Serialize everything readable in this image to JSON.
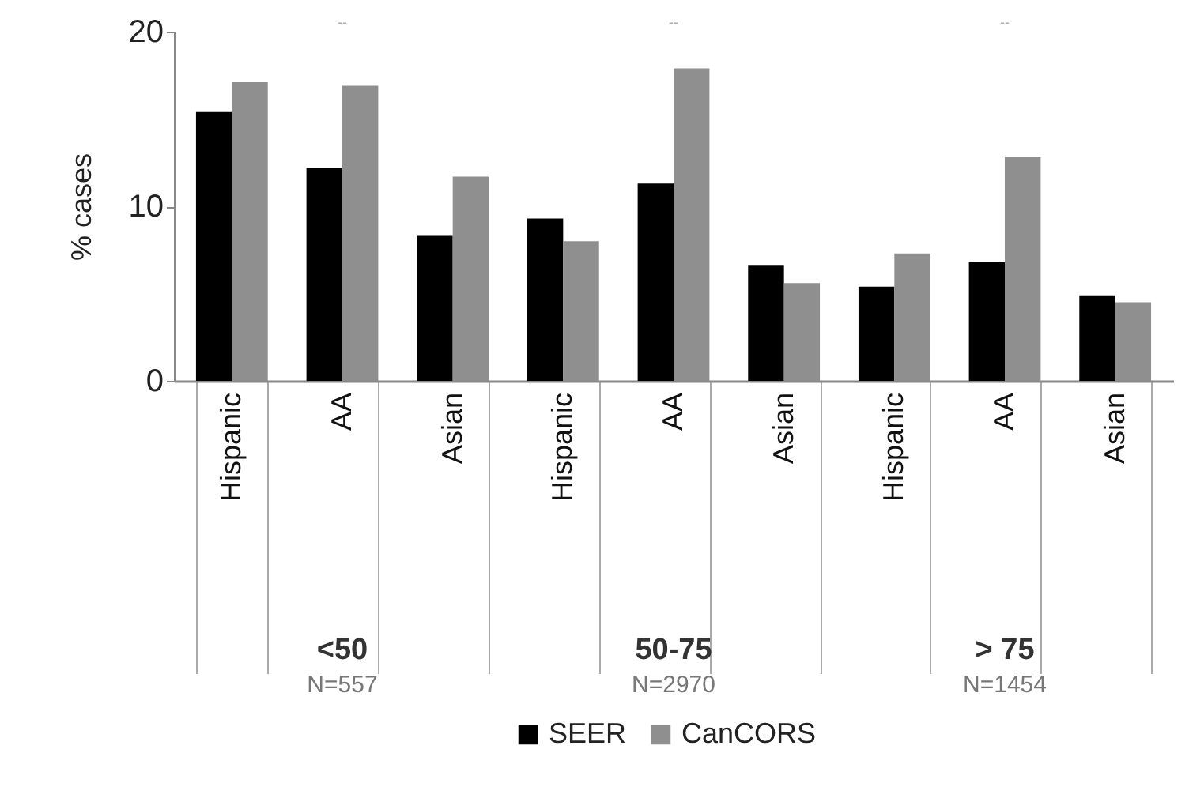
{
  "chart_data": {
    "type": "bar",
    "ylabel": "% cases",
    "categories": [
      "Hispanic",
      "AA",
      "Asian",
      "Hispanic",
      "AA",
      "Asian",
      "Hispanic",
      "AA",
      "Asian"
    ],
    "series": [
      {
        "name": "SEER",
        "color": "#000000",
        "values": [
          15.4,
          12.2,
          8.3,
          9.3,
          11.3,
          6.6,
          5.4,
          6.8,
          4.9
        ]
      },
      {
        "name": "CanCORS",
        "color": "#8f8f8f",
        "values": [
          17.1,
          16.9,
          11.7,
          8.0,
          17.9,
          5.6,
          7.3,
          12.8,
          4.5
        ]
      }
    ],
    "ylim": [
      0,
      20
    ],
    "yticks": [
      0,
      10,
      20
    ],
    "grid": false,
    "legend": "bottom",
    "annotations": [
      "--",
      "--",
      "--",
      "<50",
      "50-75",
      "> 75",
      "N=557",
      "N=2970",
      "N=1454"
    ]
  }
}
